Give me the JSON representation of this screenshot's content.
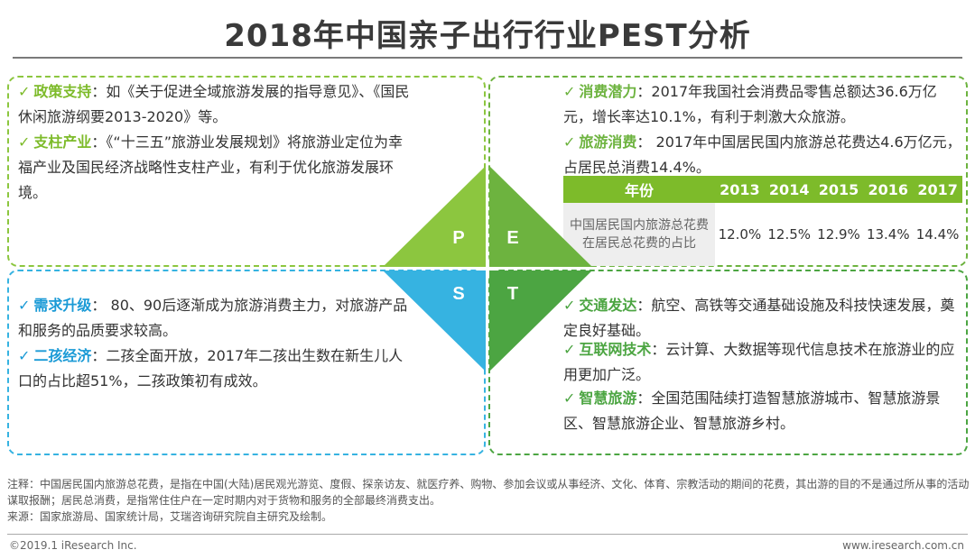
{
  "title": "2018年中国亲子出行行业PEST分析",
  "check_mark": "✓",
  "policy": {
    "items": [
      {
        "keyword": "政策支持",
        "text": "：如《关于促进全域旅游发展的指导意见》、《国民休闲旅游纲要2013-2020》等。"
      },
      {
        "keyword": "支柱产业",
        "text": "：《“十三五”旅游业发展规划》将旅游业定位为幸福产业及国民经济战略性支柱产业，有利于优化旅游发展环境。"
      }
    ]
  },
  "economy": {
    "items": [
      {
        "keyword": "消费潜力",
        "text": "：2017年我国社会消费品零售总额达36.6万亿元，增长率达10.1%，有利于刺激大众旅游。"
      },
      {
        "keyword": "旅游消费",
        "text": "：  2017年中国居民国内旅游总花费达4.6万亿元，占居民总消费14.4%。"
      }
    ],
    "table": {
      "header_label": "年份",
      "years": [
        "2013",
        "2014",
        "2015",
        "2016",
        "2017"
      ],
      "row_label": "中国居民国内旅游总花费在居民总花费的占比",
      "values": [
        "12.0%",
        "12.5%",
        "12.9%",
        "13.4%",
        "14.4%"
      ]
    }
  },
  "society": {
    "items": [
      {
        "keyword": "需求升级",
        "text": "：  80、90后逐渐成为旅游消费主力，对旅游产品和服务的品质要求较高。"
      },
      {
        "keyword": "二孩经济",
        "text": "：二孩全面开放，2017年二孩出生数在新生儿人口的占比超51%，二孩政策初有成效。"
      }
    ]
  },
  "technology": {
    "items": [
      {
        "keyword": "交通发达",
        "text": "：航空、高铁等交通基础设施及科技快速发展，奠定良好基础。"
      },
      {
        "keyword": "互联网技术",
        "text": "：云计算、大数据等现代信息技术在旅游业的应用更加广泛。"
      },
      {
        "keyword": "智慧旅游",
        "text": "：全国范围陆续打造智慧旅游城市、智慧旅游景区、智慧旅游企业、智慧旅游乡村。"
      }
    ]
  },
  "pest_letters": {
    "p": "P",
    "e": "E",
    "s": "S",
    "t": "T"
  },
  "colors": {
    "p": "#8cc63f",
    "e": "#6db33f",
    "s": "#36b3e1",
    "t": "#4ca542"
  },
  "footnote": {
    "note": "注释：中国居民国内旅游总花费，是指在中国(大陆)居民观光游览、度假、探亲访友、就医疗养、购物、参加会议或从事经济、文化、体育、宗教活动的期间的花费，其出游的目的不是通过所从事的活动谋取报酬；居民总消费，是指常住住户在一定时期内对于货物和服务的全部最终消费支出。",
    "source": "来源：国家旅游局、国家统计局，艾瑞咨询研究院自主研究及绘制。"
  },
  "footer": {
    "copyright": "©2019.1 iResearch Inc.",
    "website": "www.iresearch.com.cn"
  }
}
